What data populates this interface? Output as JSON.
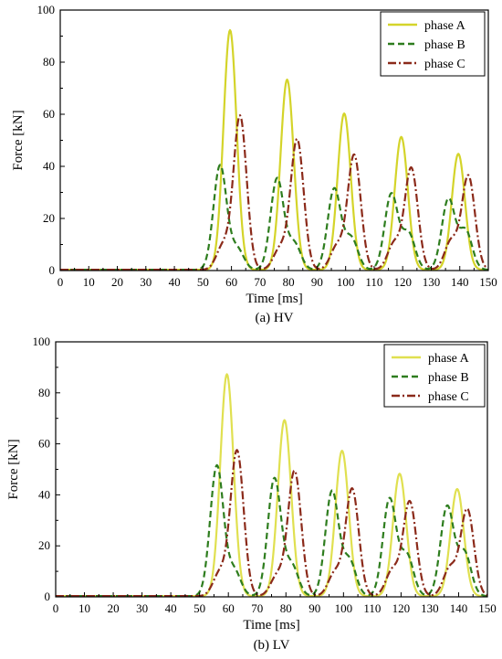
{
  "chart_data": [
    {
      "type": "line",
      "caption": "(a) HV",
      "xlabel": "Time [ms]",
      "ylabel": "Force [kN]",
      "xlim": [
        0,
        150
      ],
      "ylim": [
        0,
        100
      ],
      "xticks": [
        0,
        10,
        20,
        30,
        40,
        50,
        60,
        70,
        80,
        90,
        100,
        110,
        120,
        130,
        140,
        150
      ],
      "yticks": [
        0,
        20,
        40,
        60,
        80,
        100
      ],
      "legend_position": "top-right",
      "grid": false,
      "series": [
        {
          "name": "phase A",
          "color": "#d4d42a",
          "dash": "solid",
          "peaks": [
            {
              "t": 59.5,
              "v": 92
            },
            {
              "t": 79.5,
              "v": 73
            },
            {
              "t": 99.5,
              "v": 60
            },
            {
              "t": 119.5,
              "v": 51
            },
            {
              "t": 139.5,
              "v": 44.5
            }
          ]
        },
        {
          "name": "phase B",
          "color": "#2e7d1e",
          "dash": "dash",
          "peaks": [
            {
              "t": 56,
              "v": 40
            },
            {
              "t": 62,
              "v": 8
            },
            {
              "t": 76,
              "v": 35
            },
            {
              "t": 82,
              "v": 10
            },
            {
              "t": 96,
              "v": 31
            },
            {
              "t": 102,
              "v": 12
            },
            {
              "t": 116,
              "v": 29
            },
            {
              "t": 122,
              "v": 14
            },
            {
              "t": 136,
              "v": 27
            },
            {
              "t": 142,
              "v": 15
            }
          ]
        },
        {
          "name": "phase C",
          "color": "#8b2a1a",
          "dash": "dashdot",
          "peaks": [
            {
              "t": 63,
              "v": 59
            },
            {
              "t": 57,
              "v": 9
            },
            {
              "t": 83,
              "v": 50
            },
            {
              "t": 77,
              "v": 8
            },
            {
              "t": 103,
              "v": 44
            },
            {
              "t": 97,
              "v": 9
            },
            {
              "t": 123,
              "v": 39
            },
            {
              "t": 117,
              "v": 10
            },
            {
              "t": 143,
              "v": 36
            },
            {
              "t": 137,
              "v": 11
            }
          ]
        }
      ]
    },
    {
      "type": "line",
      "caption": "(b) LV",
      "xlabel": "Time [ms]",
      "ylabel": "Force [kN]",
      "xlim": [
        0,
        150
      ],
      "ylim": [
        0,
        100
      ],
      "xticks": [
        0,
        10,
        20,
        30,
        40,
        50,
        60,
        70,
        80,
        90,
        100,
        110,
        120,
        130,
        140,
        150
      ],
      "yticks": [
        0,
        20,
        40,
        60,
        80,
        100
      ],
      "legend_position": "top-right",
      "grid": false,
      "series": [
        {
          "name": "phase A",
          "color": "#e0e050",
          "dash": "solid",
          "peaks": [
            {
              "t": 59.5,
              "v": 87
            },
            {
              "t": 79.5,
              "v": 69
            },
            {
              "t": 99.5,
              "v": 57
            },
            {
              "t": 119.5,
              "v": 48
            },
            {
              "t": 139.5,
              "v": 42
            }
          ]
        },
        {
          "name": "phase B",
          "color": "#2e7d1e",
          "dash": "dash",
          "peaks": [
            {
              "t": 56,
              "v": 51
            },
            {
              "t": 62,
              "v": 10
            },
            {
              "t": 76,
              "v": 46
            },
            {
              "t": 82,
              "v": 12
            },
            {
              "t": 96,
              "v": 41
            },
            {
              "t": 102,
              "v": 14
            },
            {
              "t": 116,
              "v": 38
            },
            {
              "t": 122,
              "v": 16
            },
            {
              "t": 136,
              "v": 35
            },
            {
              "t": 142,
              "v": 17
            }
          ]
        },
        {
          "name": "phase C",
          "color": "#8b2a1a",
          "dash": "dashdot",
          "peaks": [
            {
              "t": 63,
              "v": 57
            },
            {
              "t": 57,
              "v": 9
            },
            {
              "t": 83,
              "v": 49
            },
            {
              "t": 77,
              "v": 8
            },
            {
              "t": 103,
              "v": 42
            },
            {
              "t": 97,
              "v": 9
            },
            {
              "t": 123,
              "v": 37
            },
            {
              "t": 117,
              "v": 10
            },
            {
              "t": 143,
              "v": 34
            },
            {
              "t": 137,
              "v": 11
            }
          ]
        }
      ]
    }
  ]
}
